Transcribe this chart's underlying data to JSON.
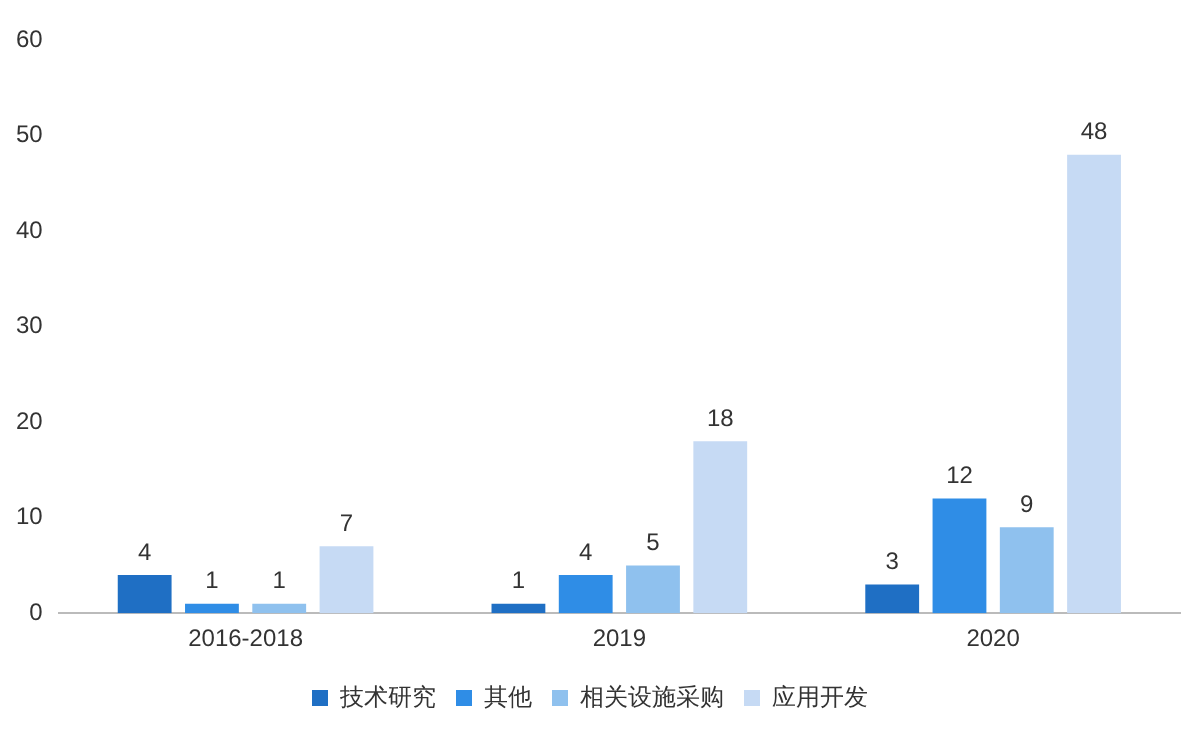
{
  "chart_data": {
    "type": "bar",
    "categories": [
      "2016-2018",
      "2019",
      "2020"
    ],
    "series": [
      {
        "name": "技术研究",
        "color": "#1f6fc4",
        "values": [
          4,
          1,
          3
        ]
      },
      {
        "name": "其他",
        "color": "#2f8de6",
        "values": [
          1,
          4,
          12
        ]
      },
      {
        "name": "相关设施采购",
        "color": "#8fc1ee",
        "values": [
          1,
          5,
          9
        ]
      },
      {
        "name": "应用开发",
        "color": "#c6daf4",
        "values": [
          7,
          18,
          48
        ]
      }
    ],
    "ylim": [
      0,
      60
    ],
    "yticks": [
      0,
      10,
      20,
      30,
      40,
      50,
      60
    ],
    "grid": false,
    "legend": "bottom",
    "data_labels": true
  }
}
